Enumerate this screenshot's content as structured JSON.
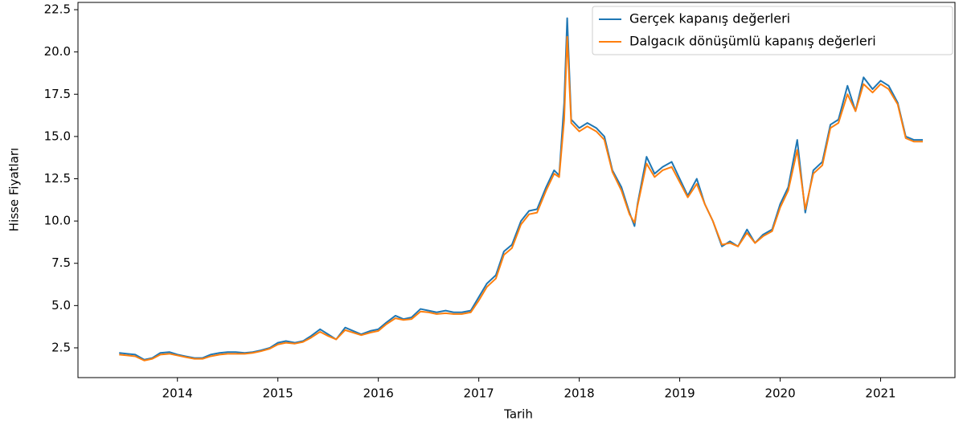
{
  "chart_data": {
    "type": "line",
    "xlabel": "Tarih",
    "ylabel": "Hisse Fiyatları",
    "legend": "upper right",
    "grid": false,
    "xlim": [
      2013.01,
      2021.74
    ],
    "xticks": [
      2014,
      2015,
      2016,
      2017,
      2018,
      2019,
      2020,
      2021
    ],
    "ylim": [
      0.74,
      22.93
    ],
    "yticks": [
      2.5,
      {
        "value": 5,
        "label": "5.0"
      },
      7.5,
      {
        "value": 10,
        "label": "10.0"
      },
      12.5,
      {
        "value": 15,
        "label": "15.0"
      },
      17.5,
      {
        "value": 20,
        "label": "20.0"
      },
      22.5
    ],
    "x": [
      2013.42,
      2013.5,
      2013.58,
      2013.67,
      2013.75,
      2013.83,
      2013.92,
      2014.0,
      2014.08,
      2014.17,
      2014.25,
      2014.33,
      2014.42,
      2014.5,
      2014.58,
      2014.67,
      2014.75,
      2014.83,
      2014.92,
      2015.0,
      2015.08,
      2015.17,
      2015.25,
      2015.33,
      2015.42,
      2015.5,
      2015.58,
      2015.67,
      2015.75,
      2015.83,
      2015.92,
      2016.0,
      2016.08,
      2016.17,
      2016.25,
      2016.33,
      2016.42,
      2016.5,
      2016.58,
      2016.67,
      2016.75,
      2016.83,
      2016.92,
      2017.0,
      2017.08,
      2017.17,
      2017.25,
      2017.33,
      2017.42,
      2017.5,
      2017.58,
      2017.67,
      2017.75,
      2017.8,
      2017.85,
      2017.88,
      2017.92,
      2018.0,
      2018.08,
      2018.17,
      2018.25,
      2018.33,
      2018.42,
      2018.5,
      2018.55,
      2018.58,
      2018.67,
      2018.75,
      2018.83,
      2018.92,
      2019.0,
      2019.08,
      2019.17,
      2019.25,
      2019.33,
      2019.42,
      2019.5,
      2019.58,
      2019.67,
      2019.75,
      2019.83,
      2019.92,
      2020.0,
      2020.08,
      2020.17,
      2020.25,
      2020.33,
      2020.42,
      2020.5,
      2020.58,
      2020.67,
      2020.75,
      2020.83,
      2020.92,
      2021.0,
      2021.08,
      2021.17,
      2021.25,
      2021.33,
      2021.42
    ],
    "series": [
      {
        "name": "Gerçek kapanış değerleri",
        "color": "#1f77b4",
        "values": [
          2.2,
          2.15,
          2.1,
          1.8,
          1.9,
          2.2,
          2.25,
          2.1,
          2.0,
          1.9,
          1.9,
          2.1,
          2.2,
          2.25,
          2.25,
          2.2,
          2.25,
          2.35,
          2.5,
          2.8,
          2.9,
          2.8,
          2.9,
          3.2,
          3.6,
          3.3,
          3.0,
          3.7,
          3.5,
          3.3,
          3.5,
          3.6,
          4.0,
          4.4,
          4.2,
          4.3,
          4.8,
          4.7,
          4.6,
          4.7,
          4.6,
          4.6,
          4.7,
          5.5,
          6.3,
          6.8,
          8.2,
          8.6,
          10.0,
          10.6,
          10.7,
          12.0,
          13.0,
          12.7,
          17.0,
          22.0,
          16.0,
          15.5,
          15.8,
          15.5,
          15.0,
          13.0,
          12.0,
          10.5,
          9.7,
          11.0,
          13.8,
          12.8,
          13.2,
          13.5,
          12.5,
          11.5,
          12.5,
          11.0,
          10.0,
          8.5,
          8.8,
          8.5,
          9.5,
          8.7,
          9.2,
          9.5,
          11.0,
          12.0,
          14.8,
          10.5,
          13.0,
          13.5,
          15.7,
          16.0,
          18.0,
          16.5,
          18.5,
          17.8,
          18.3,
          18.0,
          17.0,
          15.0,
          14.8,
          14.8
        ]
      },
      {
        "name": "Dalgacık dönüşümlü kapanış değerleri",
        "color": "#ff7f0e",
        "values": [
          2.1,
          2.05,
          2.0,
          1.75,
          1.85,
          2.1,
          2.15,
          2.05,
          1.95,
          1.85,
          1.85,
          2.0,
          2.1,
          2.15,
          2.15,
          2.15,
          2.2,
          2.3,
          2.45,
          2.7,
          2.8,
          2.75,
          2.85,
          3.1,
          3.45,
          3.2,
          3.0,
          3.55,
          3.4,
          3.25,
          3.4,
          3.5,
          3.9,
          4.25,
          4.15,
          4.2,
          4.65,
          4.6,
          4.5,
          4.55,
          4.5,
          4.5,
          4.6,
          5.3,
          6.1,
          6.6,
          8.0,
          8.4,
          9.8,
          10.4,
          10.5,
          11.8,
          12.8,
          12.6,
          16.0,
          20.9,
          15.8,
          15.3,
          15.6,
          15.3,
          14.8,
          12.9,
          11.8,
          10.4,
          9.9,
          10.9,
          13.4,
          12.6,
          13.0,
          13.2,
          12.3,
          11.4,
          12.2,
          11.0,
          10.0,
          8.6,
          8.7,
          8.5,
          9.3,
          8.7,
          9.1,
          9.4,
          10.8,
          11.8,
          14.2,
          10.7,
          12.8,
          13.3,
          15.5,
          15.8,
          17.5,
          16.5,
          18.1,
          17.6,
          18.1,
          17.8,
          16.9,
          14.9,
          14.7,
          14.7
        ]
      }
    ]
  }
}
